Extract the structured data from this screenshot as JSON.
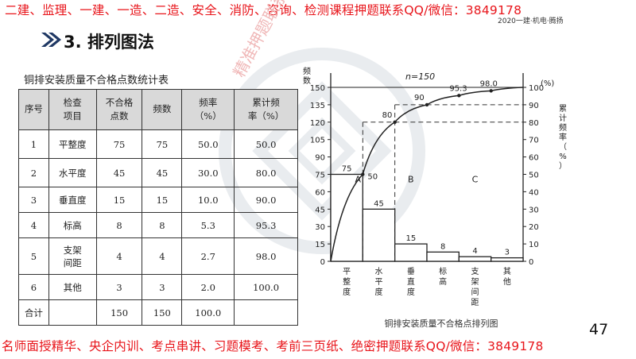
{
  "banner": {
    "top": "二建、监理、一建、一造、二造、安全、消防、咨询、检测课程押题联系QQ/微信：3849178",
    "header_right": "2020一建·机电·腾扬",
    "bottom": "名师面授精华、央企内训、考点串讲、习题模考、考前三页纸、绝密押题联系QQ/微信：3849178"
  },
  "slide": {
    "title": "3. 排列图法",
    "page_number": "47"
  },
  "watermark": {
    "text": "精准押题联系"
  },
  "table": {
    "caption": "铜排安装质量不合格点数统计表",
    "headers": [
      "序号",
      "检查\n项目",
      "不合格\n点数",
      "频数",
      "频率\n（%）",
      "累计频\n率（%）"
    ],
    "rows": [
      [
        "1",
        "平整度",
        "75",
        "75",
        "50.0",
        "50.0"
      ],
      [
        "2",
        "水平度",
        "45",
        "45",
        "30.0",
        "80.0"
      ],
      [
        "3",
        "垂直度",
        "15",
        "15",
        "10.0",
        "90.0"
      ],
      [
        "4",
        "标高",
        "8",
        "8",
        "5.3",
        "95.3"
      ],
      [
        "5",
        "支架\n间距",
        "4",
        "4",
        "2.7",
        "98.0"
      ],
      [
        "6",
        "其他",
        "3",
        "3",
        "2.0",
        "100.0"
      ]
    ],
    "total": [
      "合计",
      "",
      "150",
      "150",
      "100.0",
      ""
    ]
  },
  "chart_data": {
    "type": "bar",
    "title": "铜排安装质量不合格点排列图",
    "annotation": "n=150",
    "ylabel_left": "频数",
    "ylabel_right": "累计频率（%）",
    "right_unit": "(%)",
    "categories": [
      "平整度",
      "水平度",
      "垂直度",
      "标高",
      "支架间距",
      "其他"
    ],
    "values": [
      75,
      45,
      15,
      8,
      4,
      3
    ],
    "cumulative": [
      50,
      80,
      90,
      95.3,
      98.0,
      100
    ],
    "cumulative_labels": [
      "50",
      "80",
      "90",
      "95.3",
      "98.0"
    ],
    "ylim_left": [
      0,
      150
    ],
    "yticks_left": [
      0,
      15,
      30,
      45,
      60,
      75,
      90,
      105,
      120,
      135,
      150
    ],
    "ylim_right": [
      0,
      100
    ],
    "yticks_right": [
      0,
      10,
      20,
      30,
      40,
      50,
      60,
      70,
      80,
      90,
      100
    ],
    "zones": [
      "A",
      "B",
      "C"
    ]
  }
}
